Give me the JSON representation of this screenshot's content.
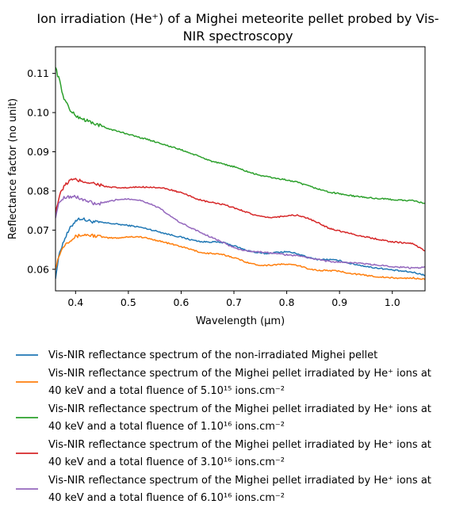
{
  "chart_data": {
    "type": "line",
    "title_line1": "Ion irradiation (He⁺) of a Mighei meteorite pellet probed by Vis-",
    "title_line2": "NIR spectroscopy",
    "xlabel": "Wavelength (μm)",
    "ylabel": "Reflectance factor (no unit)",
    "xlim": [
      0.362,
      1.062
    ],
    "ylim": [
      0.0545,
      0.1168
    ],
    "xticks": [
      "0.4",
      "0.5",
      "0.6",
      "0.7",
      "0.8",
      "0.9",
      "1.0"
    ],
    "yticks": [
      "0.06",
      "0.07",
      "0.08",
      "0.09",
      "0.10",
      "0.11"
    ],
    "grid": false,
    "legend_placement": "below",
    "series": [
      {
        "name": "Vis-NIR reflectance spectrum of the non-irradiated Mighei pellet",
        "color": "#1f77b4",
        "x": [
          0.362,
          0.37,
          0.38,
          0.39,
          0.4,
          0.41,
          0.42,
          0.44,
          0.46,
          0.48,
          0.5,
          0.52,
          0.54,
          0.56,
          0.58,
          0.6,
          0.62,
          0.64,
          0.66,
          0.68,
          0.7,
          0.72,
          0.74,
          0.76,
          0.78,
          0.8,
          0.82,
          0.84,
          0.86,
          0.88,
          0.9,
          0.92,
          0.94,
          0.96,
          0.98,
          1.0,
          1.02,
          1.04,
          1.062
        ],
        "y": [
          0.058,
          0.0645,
          0.068,
          0.0705,
          0.0725,
          0.073,
          0.0725,
          0.072,
          0.0718,
          0.0715,
          0.0712,
          0.0708,
          0.0702,
          0.0695,
          0.0688,
          0.0682,
          0.0675,
          0.067,
          0.067,
          0.0668,
          0.066,
          0.065,
          0.0643,
          0.064,
          0.0643,
          0.0645,
          0.064,
          0.063,
          0.0625,
          0.0625,
          0.0622,
          0.0615,
          0.061,
          0.0605,
          0.0602,
          0.0598,
          0.0595,
          0.0592,
          0.0585
        ]
      },
      {
        "name": "Vis-NIR reflectance spectrum of the Mighei pellet irradiated by He⁺ ions at 40 keV and a total fluence of 5.10¹⁵ ions.cm⁻²",
        "color": "#ff7f0e",
        "x": [
          0.362,
          0.37,
          0.38,
          0.39,
          0.4,
          0.41,
          0.42,
          0.44,
          0.46,
          0.48,
          0.5,
          0.52,
          0.54,
          0.56,
          0.58,
          0.6,
          0.62,
          0.64,
          0.66,
          0.68,
          0.7,
          0.72,
          0.74,
          0.76,
          0.78,
          0.8,
          0.82,
          0.84,
          0.86,
          0.88,
          0.9,
          0.92,
          0.94,
          0.96,
          0.98,
          1.0,
          1.02,
          1.04,
          1.062
        ],
        "y": [
          0.0605,
          0.064,
          0.0665,
          0.0675,
          0.0683,
          0.0687,
          0.0688,
          0.0685,
          0.068,
          0.068,
          0.0683,
          0.0683,
          0.0678,
          0.0672,
          0.0665,
          0.0658,
          0.065,
          0.0642,
          0.064,
          0.0637,
          0.063,
          0.062,
          0.0612,
          0.061,
          0.0612,
          0.0613,
          0.061,
          0.0602,
          0.0597,
          0.0597,
          0.0595,
          0.059,
          0.0586,
          0.0583,
          0.058,
          0.0578,
          0.0577,
          0.0578,
          0.0574
        ]
      },
      {
        "name": "Vis-NIR reflectance spectrum of the Mighei pellet irradiated by He⁺ ions at 40 keV and a total fluence of 1.10¹⁶ ions.cm⁻²",
        "color": "#2ca02c",
        "x": [
          0.362,
          0.365,
          0.37,
          0.375,
          0.38,
          0.385,
          0.39,
          0.4,
          0.42,
          0.44,
          0.46,
          0.48,
          0.5,
          0.52,
          0.54,
          0.56,
          0.58,
          0.6,
          0.62,
          0.64,
          0.66,
          0.68,
          0.7,
          0.72,
          0.74,
          0.76,
          0.78,
          0.8,
          0.82,
          0.84,
          0.86,
          0.88,
          0.9,
          0.92,
          0.94,
          0.96,
          0.98,
          1.0,
          1.02,
          1.04,
          1.062
        ],
        "y": [
          0.112,
          0.11,
          0.108,
          0.105,
          0.103,
          0.102,
          0.1005,
          0.0992,
          0.098,
          0.097,
          0.096,
          0.0952,
          0.0945,
          0.0937,
          0.093,
          0.0922,
          0.0913,
          0.0905,
          0.0895,
          0.0885,
          0.0875,
          0.0868,
          0.0862,
          0.0852,
          0.0843,
          0.0837,
          0.0832,
          0.0828,
          0.0822,
          0.0813,
          0.0805,
          0.0797,
          0.0793,
          0.0788,
          0.0785,
          0.0782,
          0.078,
          0.0778,
          0.0776,
          0.0775,
          0.0768
        ]
      },
      {
        "name": "Vis-NIR reflectance spectrum of the Mighei pellet irradiated by He⁺ ions at 40 keV and a total fluence of 3.10¹⁶ ions.cm⁻²",
        "color": "#d62728",
        "x": [
          0.362,
          0.37,
          0.38,
          0.39,
          0.4,
          0.42,
          0.44,
          0.46,
          0.48,
          0.5,
          0.52,
          0.54,
          0.56,
          0.58,
          0.6,
          0.62,
          0.64,
          0.66,
          0.68,
          0.7,
          0.72,
          0.74,
          0.76,
          0.78,
          0.8,
          0.82,
          0.84,
          0.86,
          0.88,
          0.9,
          0.92,
          0.94,
          0.96,
          0.98,
          1.0,
          1.02,
          1.04,
          1.062
        ],
        "y": [
          0.0745,
          0.079,
          0.0815,
          0.0828,
          0.0828,
          0.0823,
          0.0818,
          0.081,
          0.0808,
          0.0808,
          0.081,
          0.081,
          0.0808,
          0.0803,
          0.0795,
          0.0785,
          0.0775,
          0.077,
          0.0765,
          0.0757,
          0.0748,
          0.0738,
          0.0732,
          0.0733,
          0.0737,
          0.0738,
          0.073,
          0.0718,
          0.0705,
          0.0698,
          0.0692,
          0.0685,
          0.068,
          0.0675,
          0.067,
          0.0668,
          0.0665,
          0.0647
        ]
      },
      {
        "name": "Vis-NIR reflectance spectrum of the Mighei pellet irradiated by He⁺ ions at 40 keV and a total fluence of 6.10¹⁶ ions.cm⁻²",
        "color": "#9467bd",
        "x": [
          0.362,
          0.37,
          0.38,
          0.39,
          0.4,
          0.42,
          0.44,
          0.46,
          0.48,
          0.5,
          0.52,
          0.54,
          0.56,
          0.58,
          0.6,
          0.62,
          0.64,
          0.66,
          0.68,
          0.7,
          0.72,
          0.74,
          0.76,
          0.78,
          0.8,
          0.82,
          0.84,
          0.86,
          0.88,
          0.9,
          0.92,
          0.94,
          0.96,
          0.98,
          1.0,
          1.02,
          1.04,
          1.062
        ],
        "y": [
          0.0735,
          0.0775,
          0.0785,
          0.0785,
          0.0785,
          0.0775,
          0.0765,
          0.0772,
          0.0778,
          0.078,
          0.0777,
          0.0768,
          0.0755,
          0.0735,
          0.0718,
          0.0705,
          0.0692,
          0.068,
          0.0668,
          0.0655,
          0.0648,
          0.0645,
          0.0643,
          0.064,
          0.0637,
          0.0635,
          0.063,
          0.0625,
          0.062,
          0.0618,
          0.0617,
          0.0615,
          0.0612,
          0.061,
          0.0607,
          0.0605,
          0.0603,
          0.0605
        ]
      }
    ]
  }
}
